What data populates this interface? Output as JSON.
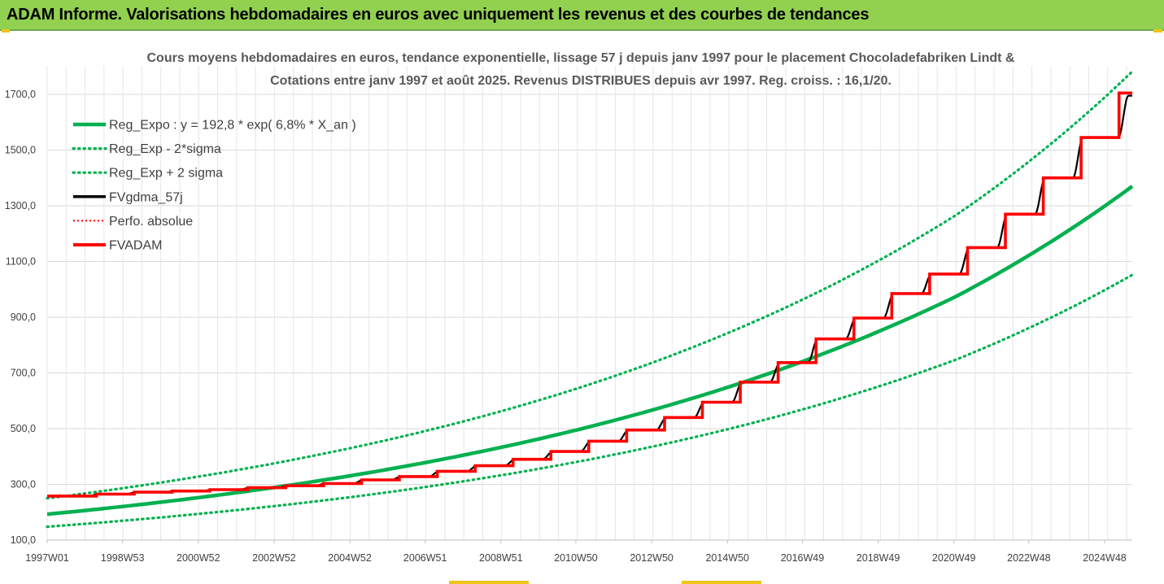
{
  "banner": {
    "title": "ADAM Informe. Valorisations hebdomadaires en euros avec uniquement les revenus et des courbes de tendances"
  },
  "colors": {
    "banner_bg": "#92d050",
    "green": "#00b050",
    "black": "#000000",
    "red": "#ff0000",
    "grid": "#d9d9d9"
  },
  "chart_data": {
    "type": "line",
    "title_lines": [
      "Cours moyens hebdomadaires en euros, tendance exponentielle, lissage 57 j depuis janv 1997 pour le placement Chocoladefabriken Lindt &",
      "Cotations entre janv 1997 et août 2025. Revenus DISTRIBUES depuis avr 1997. Reg. croiss. : 16,1/20."
    ],
    "x_start_year": 1997.0,
    "x_end_year": 2025.65,
    "x_ticks": [
      {
        "label": "1997W01",
        "year": 1997.0
      },
      {
        "label": "1998W53",
        "year": 1998.99
      },
      {
        "label": "2000W52",
        "year": 2000.99
      },
      {
        "label": "2002W52",
        "year": 2002.99
      },
      {
        "label": "2004W52",
        "year": 2004.99
      },
      {
        "label": "2006W51",
        "year": 2006.98
      },
      {
        "label": "2008W51",
        "year": 2008.98
      },
      {
        "label": "2010W50",
        "year": 2010.96
      },
      {
        "label": "2012W50",
        "year": 2012.96
      },
      {
        "label": "2014W50",
        "year": 2014.96
      },
      {
        "label": "2016W49",
        "year": 2016.94
      },
      {
        "label": "2018W49",
        "year": 2018.94
      },
      {
        "label": "2020W49",
        "year": 2020.94
      },
      {
        "label": "2022W48",
        "year": 2022.92
      },
      {
        "label": "2024W48",
        "year": 2024.92
      }
    ],
    "y_ticks": [
      {
        "label": "100,0",
        "value": 100
      },
      {
        "label": "300,0",
        "value": 300
      },
      {
        "label": "500,0",
        "value": 500
      },
      {
        "label": "700,0",
        "value": 700
      },
      {
        "label": "900,0",
        "value": 900
      },
      {
        "label": "1100,0",
        "value": 1100
      },
      {
        "label": "1300,0",
        "value": 1300
      },
      {
        "label": "1500,0",
        "value": 1500
      },
      {
        "label": "1700,0",
        "value": 1700
      }
    ],
    "ylim": [
      100,
      1800
    ],
    "grid": true,
    "legend_position": "top-left",
    "series": [
      {
        "name": "Reg_Expo : y = 192,8 *  exp( 6,8% *  X_an )",
        "style": "solid-thick",
        "color": "#00b050",
        "points": [
          [
            1997.0,
            192.8
          ],
          [
            2001.0,
            252.5
          ],
          [
            2005.0,
            330.8
          ],
          [
            2009.0,
            433.3
          ],
          [
            2013.0,
            567.8
          ],
          [
            2017.0,
            743.9
          ],
          [
            2021.0,
            974.8
          ],
          [
            2025.65,
            1370.0
          ]
        ]
      },
      {
        "name": "Reg_Exp - 2*sigma",
        "style": "dotted",
        "color": "#00b050",
        "points": [
          [
            1997.0,
            148.0
          ],
          [
            2001.0,
            194.0
          ],
          [
            2005.0,
            254.0
          ],
          [
            2009.0,
            333.0
          ],
          [
            2013.0,
            436.0
          ],
          [
            2017.0,
            571.0
          ],
          [
            2021.0,
            748.0
          ],
          [
            2025.65,
            1052.0
          ]
        ]
      },
      {
        "name": "Reg_Exp + 2 sigma",
        "style": "dotted",
        "color": "#00b050",
        "points": [
          [
            1997.0,
            250.0
          ],
          [
            2001.0,
            328.0
          ],
          [
            2005.0,
            430.0
          ],
          [
            2009.0,
            563.0
          ],
          [
            2013.0,
            738.0
          ],
          [
            2017.0,
            967.0
          ],
          [
            2021.0,
            1267.0
          ],
          [
            2025.65,
            1782.0
          ]
        ]
      },
      {
        "name": "FVgdma_57j",
        "style": "solid",
        "color": "#000000",
        "points": [
          [
            1997.0,
            258
          ],
          [
            1998.3,
            265
          ],
          [
            1999.3,
            272
          ],
          [
            2000.3,
            276
          ],
          [
            2001.3,
            281
          ],
          [
            2002.3,
            288
          ],
          [
            2003.3,
            295
          ],
          [
            2004.3,
            303
          ],
          [
            2005.3,
            316
          ],
          [
            2006.3,
            328
          ],
          [
            2007.3,
            347
          ],
          [
            2008.3,
            367
          ],
          [
            2009.3,
            390
          ],
          [
            2010.3,
            418
          ],
          [
            2011.3,
            455
          ],
          [
            2012.3,
            495
          ],
          [
            2013.3,
            540
          ],
          [
            2014.3,
            595
          ],
          [
            2015.3,
            667
          ],
          [
            2016.3,
            737
          ],
          [
            2017.3,
            822
          ],
          [
            2018.3,
            897
          ],
          [
            2019.3,
            985
          ],
          [
            2020.3,
            1055
          ],
          [
            2021.3,
            1150
          ],
          [
            2022.3,
            1270
          ],
          [
            2023.3,
            1400
          ],
          [
            2024.3,
            1545
          ],
          [
            2025.5,
            1695
          ]
        ]
      },
      {
        "name": "Perfo. absolue",
        "style": "dotted",
        "color": "#ff0000",
        "points": [
          [
            1997.0,
            255
          ],
          [
            1997.3,
            262
          ],
          [
            1997.6,
            258
          ],
          [
            1998.0,
            265
          ]
        ]
      },
      {
        "name": "FVADAM",
        "style": "step-thick",
        "color": "#ff0000",
        "steps": [
          [
            1997.0,
            258
          ],
          [
            1998.3,
            265
          ],
          [
            1999.3,
            272
          ],
          [
            2000.3,
            276
          ],
          [
            2001.3,
            281
          ],
          [
            2002.3,
            288
          ],
          [
            2003.3,
            295
          ],
          [
            2004.3,
            303
          ],
          [
            2005.3,
            316
          ],
          [
            2006.3,
            328
          ],
          [
            2007.3,
            347
          ],
          [
            2008.3,
            367
          ],
          [
            2009.3,
            390
          ],
          [
            2010.3,
            418
          ],
          [
            2011.3,
            455
          ],
          [
            2012.3,
            495
          ],
          [
            2013.3,
            540
          ],
          [
            2014.3,
            595
          ],
          [
            2015.3,
            667
          ],
          [
            2016.3,
            737
          ],
          [
            2017.3,
            822
          ],
          [
            2018.3,
            897
          ],
          [
            2019.3,
            985
          ],
          [
            2020.3,
            1055
          ],
          [
            2021.3,
            1150
          ],
          [
            2022.3,
            1270
          ],
          [
            2023.3,
            1400
          ],
          [
            2024.3,
            1545
          ],
          [
            2025.3,
            1705
          ]
        ],
        "x_end": 2025.65
      }
    ]
  }
}
